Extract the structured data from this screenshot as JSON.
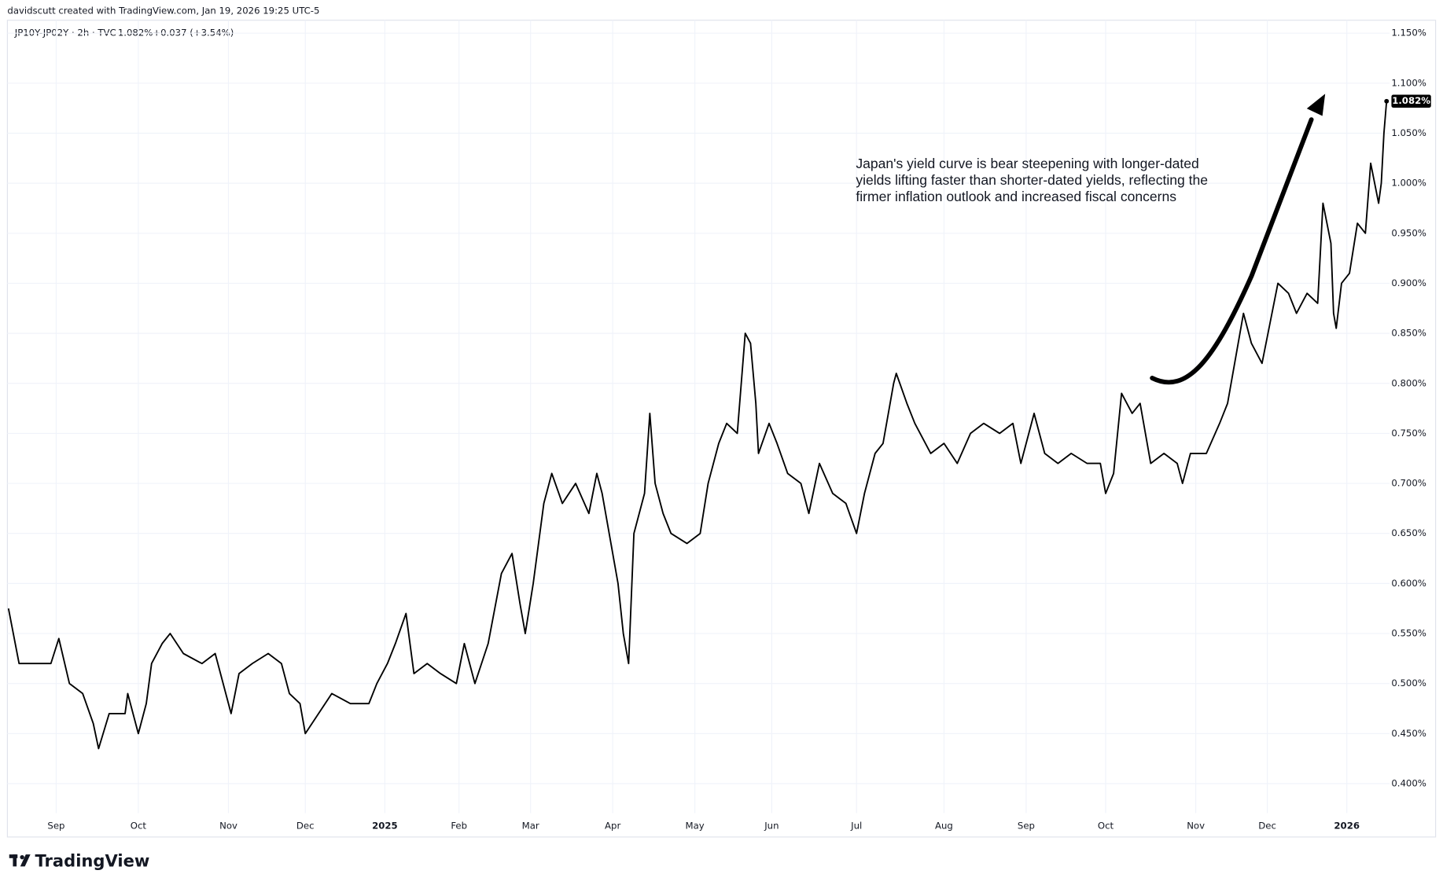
{
  "credit": "davidscutt created with TradingView.com, Jan 19, 2026 19:25 UTC-5",
  "legend": {
    "symbol": "JP10Y-JP02Y · 2h · TVC",
    "last": "1.082%",
    "change": "+0.037 (+3.54%)"
  },
  "logo": "TradingView",
  "chart_data": {
    "type": "line",
    "annotation": [
      "Japan's yield curve is bear steepening with longer-dated",
      "yields lifting faster than shorter-dated yields, reflecting the",
      "firmer inflation outlook and increased fiscal concerns"
    ],
    "last_price_label": "1.082%",
    "color": "#000000",
    "grid": true,
    "xlim": [
      -19,
      503
    ],
    "ylim": [
      0.37,
      1.163
    ],
    "xticks": [
      {
        "value": 0,
        "label": "Sep"
      },
      {
        "value": 31,
        "label": "Oct"
      },
      {
        "value": 65,
        "label": "Nov"
      },
      {
        "value": 94,
        "label": "Dec"
      },
      {
        "value": 124,
        "label": "2025"
      },
      {
        "value": 152,
        "label": "Feb"
      },
      {
        "value": 179,
        "label": "Mar"
      },
      {
        "value": 210,
        "label": "Apr"
      },
      {
        "value": 241,
        "label": "May"
      },
      {
        "value": 270,
        "label": "Jun"
      },
      {
        "value": 302,
        "label": "Jul"
      },
      {
        "value": 335,
        "label": "Aug"
      },
      {
        "value": 366,
        "label": "Sep"
      },
      {
        "value": 396,
        "label": "Oct"
      },
      {
        "value": 430,
        "label": "Nov"
      },
      {
        "value": 457,
        "label": "Dec"
      },
      {
        "value": 487,
        "label": "2026"
      }
    ],
    "yticks": [
      {
        "value": 0.4,
        "label": "0.400%"
      },
      {
        "value": 0.45,
        "label": "0.450%"
      },
      {
        "value": 0.5,
        "label": "0.500%"
      },
      {
        "value": 0.55,
        "label": "0.550%"
      },
      {
        "value": 0.6,
        "label": "0.600%"
      },
      {
        "value": 0.65,
        "label": "0.650%"
      },
      {
        "value": 0.7,
        "label": "0.700%"
      },
      {
        "value": 0.75,
        "label": "0.750%"
      },
      {
        "value": 0.8,
        "label": "0.800%"
      },
      {
        "value": 0.85,
        "label": "0.850%"
      },
      {
        "value": 0.9,
        "label": "0.900%"
      },
      {
        "value": 0.95,
        "label": "0.950%"
      },
      {
        "value": 1.0,
        "label": "1.000%"
      },
      {
        "value": 1.05,
        "label": "1.050%"
      },
      {
        "value": 1.1,
        "label": "1.100%"
      },
      {
        "value": 1.15,
        "label": "1.150%"
      }
    ],
    "series": [
      {
        "name": "JP10Y-JP02Y",
        "color": "#000000",
        "x": [
          -18,
          -14,
          -7,
          -2,
          1,
          5,
          10,
          14,
          16,
          20,
          26,
          27,
          31,
          34,
          36,
          40,
          43,
          48,
          55,
          60,
          66,
          69,
          74,
          80,
          85,
          88,
          92,
          94,
          99,
          104,
          111,
          118,
          121,
          125,
          128,
          132,
          135,
          140,
          145,
          151,
          154,
          158,
          163,
          168,
          172,
          175,
          177,
          180,
          184,
          187,
          191,
          196,
          201,
          204,
          206,
          210,
          212,
          214,
          216,
          218,
          222,
          224,
          226,
          229,
          232,
          238,
          243,
          246,
          250,
          253,
          257,
          260,
          262,
          264,
          265,
          269,
          272,
          276,
          281,
          284,
          288,
          293,
          298,
          302,
          305,
          309,
          312,
          316,
          317,
          321,
          324,
          330,
          335,
          340,
          345,
          350,
          356,
          361,
          364,
          369,
          373,
          378,
          383,
          389,
          394,
          396,
          399,
          402,
          406,
          409,
          413,
          418,
          423,
          425,
          428,
          434,
          439,
          442,
          446,
          448,
          451,
          455,
          458,
          461,
          465,
          468,
          472,
          476,
          478,
          481,
          482,
          483,
          485,
          488,
          491,
          494,
          496,
          499,
          500,
          501,
          502
        ],
        "values": [
          0.575,
          0.52,
          0.52,
          0.52,
          0.545,
          0.5,
          0.49,
          0.46,
          0.435,
          0.47,
          0.47,
          0.49,
          0.45,
          0.48,
          0.52,
          0.54,
          0.55,
          0.53,
          0.52,
          0.53,
          0.47,
          0.51,
          0.52,
          0.53,
          0.52,
          0.49,
          0.48,
          0.45,
          0.47,
          0.49,
          0.48,
          0.48,
          0.5,
          0.52,
          0.54,
          0.57,
          0.51,
          0.52,
          0.51,
          0.5,
          0.54,
          0.5,
          0.54,
          0.61,
          0.63,
          0.58,
          0.55,
          0.6,
          0.68,
          0.71,
          0.68,
          0.7,
          0.67,
          0.71,
          0.69,
          0.63,
          0.6,
          0.55,
          0.52,
          0.65,
          0.69,
          0.77,
          0.7,
          0.67,
          0.65,
          0.64,
          0.65,
          0.7,
          0.74,
          0.76,
          0.75,
          0.85,
          0.84,
          0.78,
          0.73,
          0.76,
          0.74,
          0.71,
          0.7,
          0.67,
          0.72,
          0.69,
          0.68,
          0.65,
          0.69,
          0.73,
          0.74,
          0.8,
          0.81,
          0.78,
          0.76,
          0.73,
          0.74,
          0.72,
          0.75,
          0.76,
          0.75,
          0.76,
          0.72,
          0.77,
          0.73,
          0.72,
          0.73,
          0.72,
          0.72,
          0.69,
          0.71,
          0.79,
          0.77,
          0.78,
          0.72,
          0.73,
          0.72,
          0.7,
          0.73,
          0.73,
          0.76,
          0.78,
          0.84,
          0.87,
          0.84,
          0.82,
          0.86,
          0.9,
          0.89,
          0.87,
          0.89,
          0.88,
          0.98,
          0.94,
          0.87,
          0.855,
          0.9,
          0.91,
          0.96,
          0.95,
          1.02,
          0.98,
          1.0,
          1.05,
          1.082
        ]
      }
    ]
  }
}
